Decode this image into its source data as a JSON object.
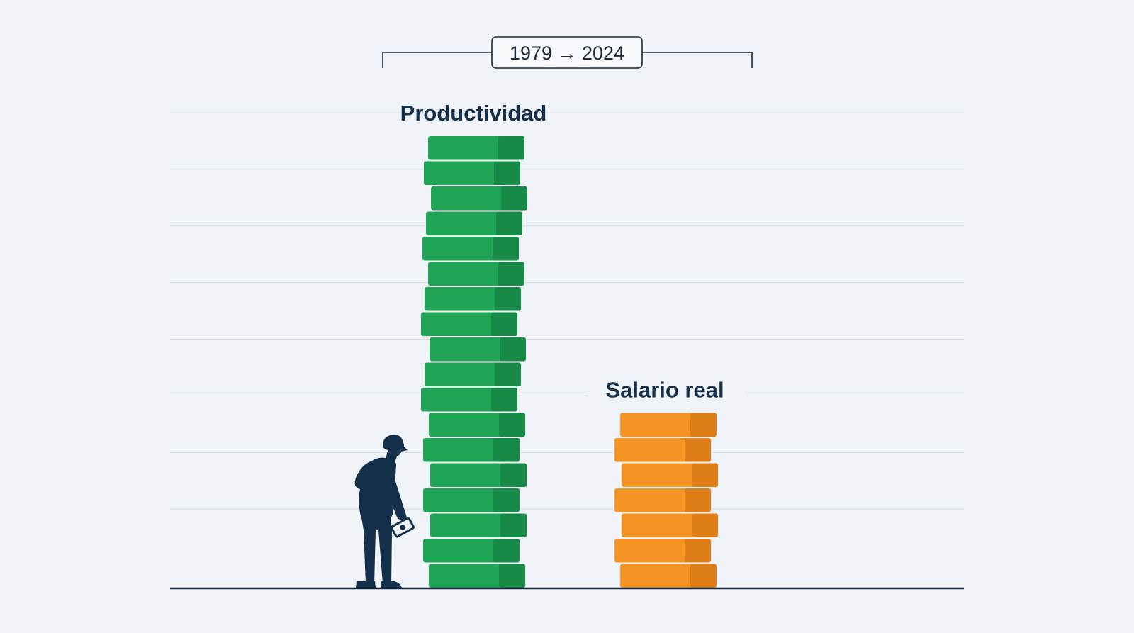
{
  "chart_data": {
    "type": "bar",
    "period": "1979 → 2024",
    "categories": [
      "Productividad",
      "Salario real"
    ],
    "values": [
      18,
      7
    ],
    "ylim": [
      0,
      18
    ],
    "grid": true,
    "colors": {
      "Productividad": "#1fa354",
      "Salario real": "#f59424"
    },
    "shade_colors": {
      "Productividad": "#178a47",
      "Salario real": "#df7d16"
    },
    "background": "#f0f3f8",
    "gridline_color": "#d9e0ea",
    "baseline_color": "#1b2b3e",
    "figure_icon": "worker-with-money-icon",
    "figure_color": "#15304a"
  }
}
